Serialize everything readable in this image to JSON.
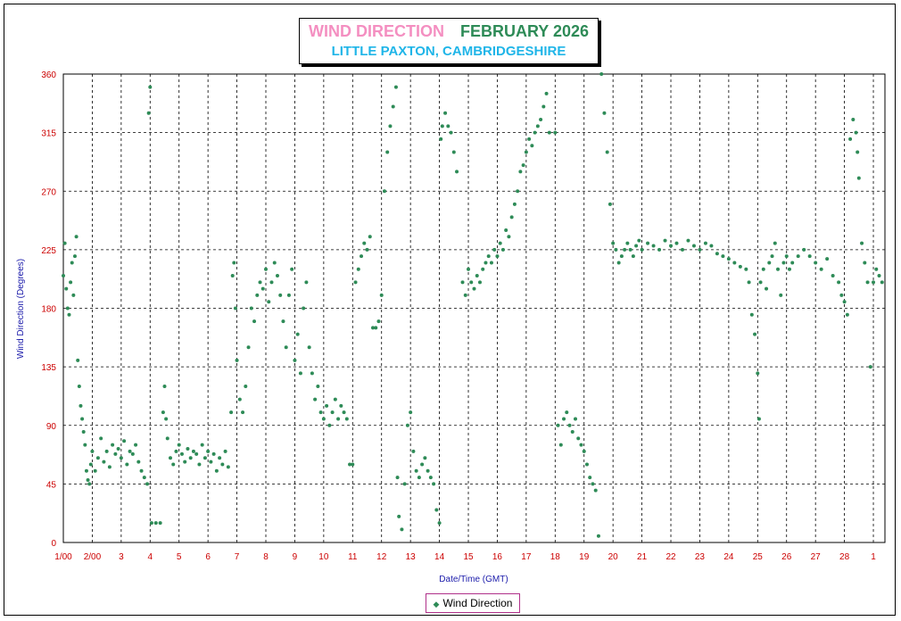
{
  "chart_data": {
    "type": "scatter",
    "title": "WIND DIRECTION",
    "title_month": "FEBRUARY 2026",
    "subtitle": "LITTLE PAXTON, CAMBRIDGESHIRE",
    "xlabel": "Date/Time (GMT)",
    "ylabel": "Wind Direction (Degrees)",
    "ylim": [
      0,
      360
    ],
    "xlim": [
      1,
      29.4
    ],
    "y_ticks": [
      0,
      45,
      90,
      135,
      180,
      225,
      270,
      315,
      360
    ],
    "x_ticks": [
      {
        "x": 1,
        "label": "1/00"
      },
      {
        "x": 2,
        "label": "2/00"
      },
      {
        "x": 3,
        "label": "3"
      },
      {
        "x": 4,
        "label": "4"
      },
      {
        "x": 5,
        "label": "5"
      },
      {
        "x": 6,
        "label": "6"
      },
      {
        "x": 7,
        "label": "7"
      },
      {
        "x": 8,
        "label": "8"
      },
      {
        "x": 9,
        "label": "9"
      },
      {
        "x": 10,
        "label": "10"
      },
      {
        "x": 11,
        "label": "11"
      },
      {
        "x": 12,
        "label": "12"
      },
      {
        "x": 13,
        "label": "13"
      },
      {
        "x": 14,
        "label": "14"
      },
      {
        "x": 15,
        "label": "15"
      },
      {
        "x": 16,
        "label": "16"
      },
      {
        "x": 17,
        "label": "17"
      },
      {
        "x": 18,
        "label": "18"
      },
      {
        "x": 19,
        "label": "19"
      },
      {
        "x": 20,
        "label": "20"
      },
      {
        "x": 21,
        "label": "21"
      },
      {
        "x": 22,
        "label": "22"
      },
      {
        "x": 23,
        "label": "23"
      },
      {
        "x": 24,
        "label": "24"
      },
      {
        "x": 25,
        "label": "25"
      },
      {
        "x": 26,
        "label": "26"
      },
      {
        "x": 27,
        "label": "27"
      },
      {
        "x": 28,
        "label": "28"
      },
      {
        "x": 29,
        "label": "1"
      }
    ],
    "grid": true,
    "legend_position": "bottom-center",
    "series": [
      {
        "name": "Wind Direction",
        "color": "#2e8b57",
        "points": [
          [
            1.0,
            205
          ],
          [
            1.05,
            230
          ],
          [
            1.1,
            195
          ],
          [
            1.15,
            180
          ],
          [
            1.2,
            175
          ],
          [
            1.25,
            200
          ],
          [
            1.3,
            215
          ],
          [
            1.35,
            190
          ],
          [
            1.4,
            220
          ],
          [
            1.45,
            235
          ],
          [
            1.5,
            140
          ],
          [
            1.55,
            120
          ],
          [
            1.6,
            105
          ],
          [
            1.65,
            95
          ],
          [
            1.7,
            85
          ],
          [
            1.75,
            75
          ],
          [
            1.8,
            55
          ],
          [
            1.85,
            48
          ],
          [
            1.9,
            45
          ],
          [
            1.95,
            60
          ],
          [
            2.0,
            70
          ],
          [
            2.1,
            55
          ],
          [
            2.2,
            65
          ],
          [
            2.3,
            80
          ],
          [
            2.4,
            62
          ],
          [
            2.5,
            70
          ],
          [
            2.6,
            58
          ],
          [
            2.7,
            75
          ],
          [
            2.8,
            68
          ],
          [
            2.9,
            72
          ],
          [
            3.0,
            65
          ],
          [
            3.1,
            78
          ],
          [
            3.2,
            60
          ],
          [
            3.3,
            70
          ],
          [
            3.4,
            68
          ],
          [
            3.5,
            75
          ],
          [
            3.6,
            62
          ],
          [
            3.7,
            55
          ],
          [
            3.8,
            50
          ],
          [
            3.9,
            45
          ],
          [
            3.95,
            330
          ],
          [
            4.0,
            350
          ],
          [
            4.05,
            15
          ],
          [
            4.2,
            15
          ],
          [
            4.35,
            15
          ],
          [
            4.45,
            100
          ],
          [
            4.5,
            120
          ],
          [
            4.55,
            95
          ],
          [
            4.6,
            80
          ],
          [
            4.7,
            65
          ],
          [
            4.8,
            60
          ],
          [
            4.9,
            70
          ],
          [
            5.0,
            75
          ],
          [
            5.1,
            68
          ],
          [
            5.2,
            62
          ],
          [
            5.3,
            72
          ],
          [
            5.4,
            65
          ],
          [
            5.5,
            70
          ],
          [
            5.6,
            68
          ],
          [
            5.7,
            60
          ],
          [
            5.8,
            75
          ],
          [
            5.9,
            65
          ],
          [
            6.0,
            70
          ],
          [
            6.1,
            62
          ],
          [
            6.2,
            68
          ],
          [
            6.3,
            55
          ],
          [
            6.4,
            65
          ],
          [
            6.5,
            60
          ],
          [
            6.6,
            70
          ],
          [
            6.7,
            58
          ],
          [
            6.8,
            100
          ],
          [
            6.85,
            205
          ],
          [
            6.9,
            215
          ],
          [
            6.95,
            180
          ],
          [
            7.0,
            140
          ],
          [
            7.1,
            110
          ],
          [
            7.2,
            100
          ],
          [
            7.3,
            120
          ],
          [
            7.4,
            150
          ],
          [
            7.5,
            180
          ],
          [
            7.6,
            170
          ],
          [
            7.7,
            190
          ],
          [
            7.8,
            200
          ],
          [
            7.9,
            195
          ],
          [
            8.0,
            210
          ],
          [
            8.1,
            185
          ],
          [
            8.2,
            200
          ],
          [
            8.3,
            215
          ],
          [
            8.4,
            205
          ],
          [
            8.5,
            190
          ],
          [
            8.6,
            170
          ],
          [
            8.7,
            150
          ],
          [
            8.8,
            190
          ],
          [
            8.9,
            210
          ],
          [
            9.0,
            140
          ],
          [
            9.1,
            160
          ],
          [
            9.2,
            130
          ],
          [
            9.3,
            180
          ],
          [
            9.4,
            200
          ],
          [
            9.5,
            150
          ],
          [
            9.6,
            130
          ],
          [
            9.7,
            110
          ],
          [
            9.8,
            120
          ],
          [
            9.9,
            100
          ],
          [
            10.0,
            95
          ],
          [
            10.1,
            105
          ],
          [
            10.2,
            90
          ],
          [
            10.3,
            100
          ],
          [
            10.4,
            110
          ],
          [
            10.5,
            95
          ],
          [
            10.6,
            105
          ],
          [
            10.7,
            100
          ],
          [
            10.8,
            95
          ],
          [
            10.9,
            60
          ],
          [
            11.0,
            60
          ],
          [
            11.1,
            200
          ],
          [
            11.2,
            210
          ],
          [
            11.3,
            220
          ],
          [
            11.4,
            230
          ],
          [
            11.5,
            225
          ],
          [
            11.6,
            235
          ],
          [
            11.7,
            165
          ],
          [
            11.8,
            165
          ],
          [
            11.9,
            170
          ],
          [
            12.0,
            190
          ],
          [
            12.1,
            270
          ],
          [
            12.2,
            300
          ],
          [
            12.3,
            320
          ],
          [
            12.4,
            335
          ],
          [
            12.5,
            350
          ],
          [
            12.55,
            50
          ],
          [
            12.6,
            20
          ],
          [
            12.7,
            10
          ],
          [
            12.8,
            45
          ],
          [
            12.9,
            90
          ],
          [
            13.0,
            100
          ],
          [
            13.1,
            70
          ],
          [
            13.2,
            55
          ],
          [
            13.3,
            50
          ],
          [
            13.4,
            60
          ],
          [
            13.5,
            65
          ],
          [
            13.6,
            55
          ],
          [
            13.7,
            50
          ],
          [
            13.8,
            45
          ],
          [
            13.9,
            25
          ],
          [
            14.0,
            15
          ],
          [
            14.05,
            310
          ],
          [
            14.1,
            320
          ],
          [
            14.2,
            330
          ],
          [
            14.3,
            320
          ],
          [
            14.4,
            315
          ],
          [
            14.5,
            300
          ],
          [
            14.6,
            285
          ],
          [
            14.8,
            200
          ],
          [
            14.9,
            190
          ],
          [
            15.0,
            210
          ],
          [
            15.1,
            200
          ],
          [
            15.2,
            195
          ],
          [
            15.3,
            205
          ],
          [
            15.4,
            200
          ],
          [
            15.5,
            210
          ],
          [
            15.6,
            215
          ],
          [
            15.7,
            220
          ],
          [
            15.8,
            215
          ],
          [
            15.9,
            225
          ],
          [
            16.0,
            220
          ],
          [
            16.1,
            230
          ],
          [
            16.2,
            225
          ],
          [
            16.3,
            240
          ],
          [
            16.4,
            235
          ],
          [
            16.5,
            250
          ],
          [
            16.6,
            260
          ],
          [
            16.7,
            270
          ],
          [
            16.8,
            285
          ],
          [
            16.9,
            290
          ],
          [
            17.0,
            300
          ],
          [
            17.1,
            310
          ],
          [
            17.2,
            305
          ],
          [
            17.3,
            315
          ],
          [
            17.4,
            320
          ],
          [
            17.5,
            325
          ],
          [
            17.6,
            335
          ],
          [
            17.7,
            345
          ],
          [
            17.8,
            315
          ],
          [
            18.0,
            315
          ],
          [
            18.1,
            90
          ],
          [
            18.2,
            75
          ],
          [
            18.3,
            95
          ],
          [
            18.4,
            100
          ],
          [
            18.5,
            90
          ],
          [
            18.6,
            85
          ],
          [
            18.7,
            95
          ],
          [
            18.8,
            80
          ],
          [
            18.9,
            75
          ],
          [
            19.0,
            70
          ],
          [
            19.1,
            60
          ],
          [
            19.2,
            50
          ],
          [
            19.3,
            45
          ],
          [
            19.4,
            40
          ],
          [
            19.5,
            5
          ],
          [
            19.6,
            360
          ],
          [
            19.7,
            330
          ],
          [
            19.8,
            300
          ],
          [
            19.9,
            260
          ],
          [
            20.0,
            230
          ],
          [
            20.1,
            225
          ],
          [
            20.2,
            215
          ],
          [
            20.3,
            220
          ],
          [
            20.4,
            225
          ],
          [
            20.5,
            230
          ],
          [
            20.6,
            225
          ],
          [
            20.7,
            220
          ],
          [
            20.8,
            228
          ],
          [
            20.9,
            232
          ],
          [
            21.0,
            225
          ],
          [
            21.2,
            230
          ],
          [
            21.4,
            228
          ],
          [
            21.6,
            225
          ],
          [
            21.8,
            232
          ],
          [
            22.0,
            228
          ],
          [
            22.2,
            230
          ],
          [
            22.4,
            225
          ],
          [
            22.6,
            232
          ],
          [
            22.8,
            228
          ],
          [
            23.0,
            225
          ],
          [
            23.2,
            230
          ],
          [
            23.4,
            228
          ],
          [
            23.6,
            222
          ],
          [
            23.8,
            220
          ],
          [
            24.0,
            218
          ],
          [
            24.2,
            215
          ],
          [
            24.4,
            212
          ],
          [
            24.6,
            210
          ],
          [
            24.7,
            200
          ],
          [
            24.8,
            175
          ],
          [
            24.9,
            160
          ],
          [
            25.0,
            130
          ],
          [
            25.05,
            95
          ],
          [
            25.1,
            200
          ],
          [
            25.2,
            210
          ],
          [
            25.3,
            195
          ],
          [
            25.4,
            215
          ],
          [
            25.5,
            220
          ],
          [
            25.6,
            230
          ],
          [
            25.7,
            210
          ],
          [
            25.8,
            190
          ],
          [
            25.9,
            215
          ],
          [
            26.0,
            220
          ],
          [
            26.1,
            210
          ],
          [
            26.2,
            215
          ],
          [
            26.4,
            220
          ],
          [
            26.6,
            225
          ],
          [
            26.8,
            220
          ],
          [
            27.0,
            215
          ],
          [
            27.2,
            210
          ],
          [
            27.4,
            218
          ],
          [
            27.6,
            205
          ],
          [
            27.8,
            200
          ],
          [
            27.9,
            190
          ],
          [
            28.0,
            185
          ],
          [
            28.1,
            175
          ],
          [
            28.2,
            310
          ],
          [
            28.3,
            325
          ],
          [
            28.4,
            315
          ],
          [
            28.45,
            300
          ],
          [
            28.5,
            280
          ],
          [
            28.6,
            230
          ],
          [
            28.7,
            215
          ],
          [
            28.8,
            200
          ],
          [
            28.9,
            135
          ],
          [
            29.0,
            200
          ],
          [
            29.1,
            210
          ],
          [
            29.2,
            205
          ],
          [
            29.3,
            200
          ]
        ]
      }
    ]
  }
}
